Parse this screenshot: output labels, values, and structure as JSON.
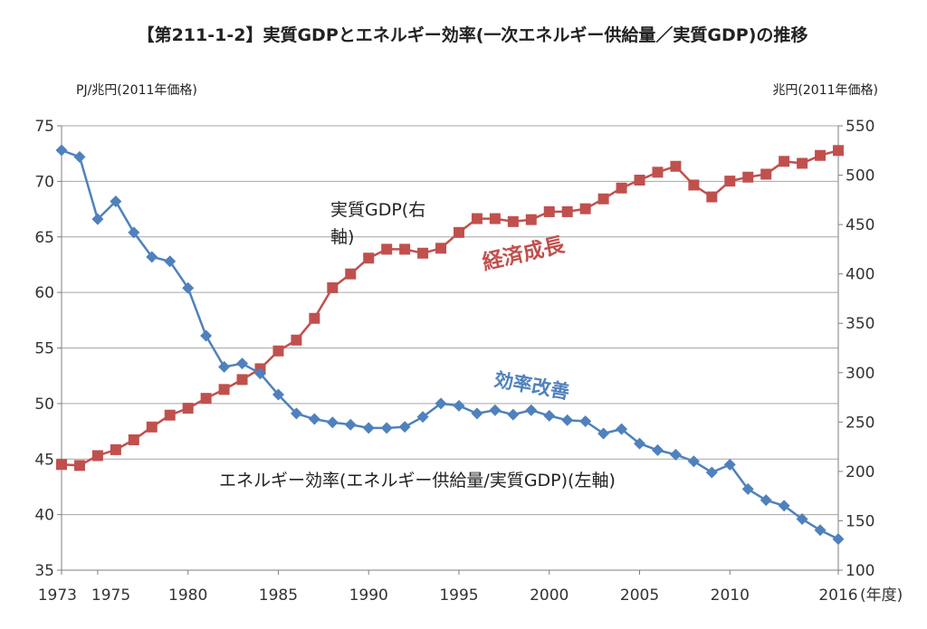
{
  "chart_data": {
    "type": "line",
    "title": "【第211-1-2】実質GDPとエネルギー効率(一次エネルギー供給量／実質GDP)の推移",
    "y_left_unit": "PJ/兆円(2011年価格)",
    "y_right_unit": "兆円(2011年価格)",
    "x_unit": "(年度)",
    "x_ticks": [
      1973,
      1975,
      1980,
      1985,
      1990,
      1995,
      2000,
      2005,
      2010,
      2016
    ],
    "x_tick_labels": [
      "1973",
      "1975",
      "1980",
      "1985",
      "1990",
      "1995",
      "2000",
      "2005",
      "2010",
      "2016"
    ],
    "y_left_ticks": [
      35,
      40,
      45,
      50,
      55,
      60,
      65,
      70,
      75
    ],
    "y_left_tick_labels": [
      "35",
      "40",
      "45",
      "50",
      "55",
      "60",
      "65",
      "70",
      "75"
    ],
    "y_right_ticks": [
      100,
      150,
      200,
      250,
      300,
      350,
      400,
      450,
      500,
      550
    ],
    "y_right_tick_labels": [
      "100",
      "150",
      "200",
      "250",
      "300",
      "350",
      "400",
      "450",
      "500",
      "550"
    ],
    "y_left_lim": [
      35,
      75
    ],
    "y_right_lim": [
      100,
      550
    ],
    "x_lim": [
      1973,
      2016
    ],
    "grid": true,
    "x": [
      1973,
      1974,
      1975,
      1976,
      1977,
      1978,
      1979,
      1980,
      1981,
      1982,
      1983,
      1984,
      1985,
      1986,
      1987,
      1988,
      1989,
      1990,
      1991,
      1992,
      1993,
      1994,
      1995,
      1996,
      1997,
      1998,
      1999,
      2000,
      2001,
      2002,
      2003,
      2004,
      2005,
      2006,
      2007,
      2008,
      2009,
      2010,
      2011,
      2012,
      2013,
      2014,
      2015,
      2016
    ],
    "series": [
      {
        "name": "エネルギー効率(エネルギー供給量/実質GDP)(左軸)",
        "axis": "left",
        "color": "#4f81bd",
        "marker": "diamond",
        "values": [
          72.8,
          72.2,
          66.6,
          68.2,
          65.4,
          63.2,
          62.8,
          60.4,
          56.1,
          53.3,
          53.6,
          52.7,
          50.8,
          49.1,
          48.6,
          48.3,
          48.1,
          47.8,
          47.8,
          47.9,
          48.8,
          50.0,
          49.8,
          49.1,
          49.4,
          49.0,
          49.4,
          48.9,
          48.5,
          48.4,
          47.3,
          47.7,
          46.4,
          45.8,
          45.4,
          44.8,
          43.8,
          44.5,
          42.3,
          41.3,
          40.8,
          39.6,
          38.6,
          37.8
        ]
      },
      {
        "name": "実質GDP(右軸)",
        "axis": "right",
        "color": "#c0504d",
        "marker": "square",
        "values": [
          207,
          206,
          216,
          222,
          232,
          245,
          257,
          264,
          274,
          283,
          293,
          304,
          322,
          333,
          355,
          386,
          400,
          416,
          425,
          425,
          421,
          426,
          442,
          456,
          456,
          453,
          455,
          463,
          463,
          466,
          476,
          487,
          495,
          503,
          509,
          490,
          478,
          494,
          498,
          501,
          514,
          512,
          520,
          525
        ]
      }
    ],
    "annotations": {
      "gdp_label_line1": "実質GDP(右",
      "gdp_label_line2": "軸)",
      "growth_label": "経済成長",
      "efficiency_label": "効率改善",
      "efficiency_series_label": "エネルギー効率(エネルギー供給量/実質GDP)(左軸)"
    }
  }
}
